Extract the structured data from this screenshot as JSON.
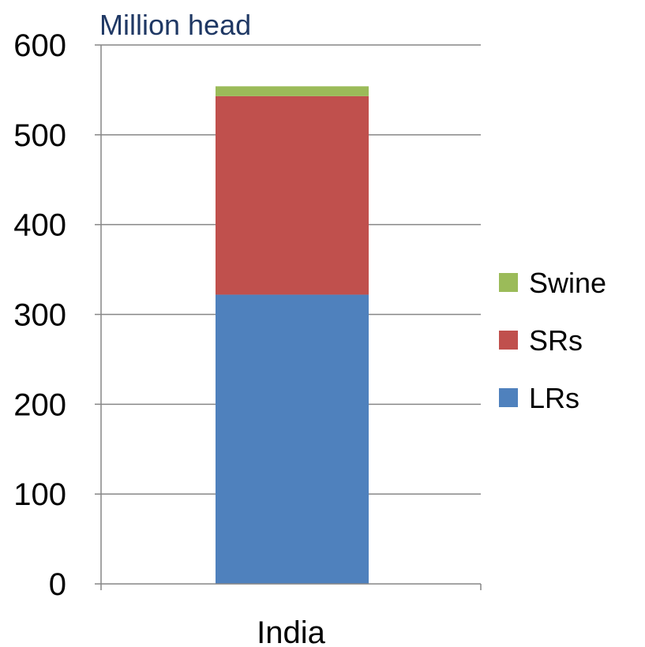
{
  "chart_data": {
    "type": "bar",
    "stacked": true,
    "unit_label": "Million head",
    "categories": [
      "India"
    ],
    "series": [
      {
        "name": "LRs",
        "values": [
          322
        ],
        "color": "#4f81bd"
      },
      {
        "name": "SRs",
        "values": [
          221
        ],
        "color": "#c0504d"
      },
      {
        "name": "Swine",
        "values": [
          11
        ],
        "color": "#9bbb59"
      }
    ],
    "ylim": [
      0,
      600
    ],
    "yticks": [
      0,
      100,
      200,
      300,
      400,
      500,
      600
    ],
    "grid": true,
    "legend_position": "right",
    "legend_order": [
      "Swine",
      "SRs",
      "LRs"
    ]
  }
}
